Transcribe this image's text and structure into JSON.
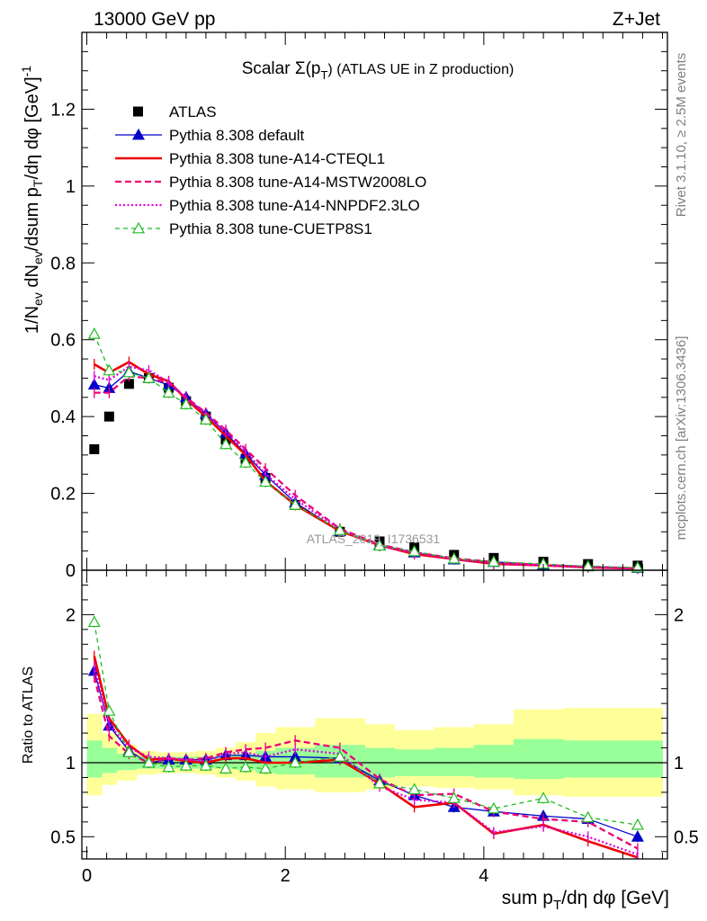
{
  "header": {
    "left": "13000 GeV pp",
    "right": "Z+Jet"
  },
  "side_labels": {
    "rivet": "Rivet 3.1.10, ≥ 2.5M events",
    "mcplots": "mcplots.cern.ch [arXiv:1306.3436]"
  },
  "watermark": "ATLAS_2019_I1736531",
  "colors": {
    "atlas": "#000000",
    "default": "#0000cc",
    "cteql1": "#ee0000",
    "mstw": "#ee0077",
    "nnpdf": "#dd00dd",
    "cuetp8s1": "#22bb22",
    "band_inner": "#99ff99",
    "band_outer": "#ffff99"
  },
  "chart_data": {
    "type": "line",
    "title": "Scalar Σ(p_T) (ATLAS UE in Z production)",
    "title_main": "Scalar Σ(p",
    "title_sub": "T",
    "title_rest": ") (ATLAS UE in Z production)",
    "xlabel": "sum p_T/dη dφ [GeV]",
    "xlabel_a": "sum p",
    "xlabel_sub": "T",
    "xlabel_b": "/dη dφ [GeV]",
    "ylabel": "1/N_ev dN_ev/dsum p_T/dη dφ [GeV]^-1",
    "ylabel_parts": {
      "a": "1/N",
      "sub1": "ev",
      "b": " dN",
      "sub2": "ev",
      "c": "/dsum p",
      "sub3": "T",
      "d": "/dη dφ  [GeV]",
      "sup": "-1"
    },
    "ratio_ylabel": "Ratio to ATLAS",
    "xlim": [
      -0.05,
      5.85
    ],
    "ylim": [
      0,
      1.4
    ],
    "ratio_ylim": [
      0.35,
      2.3
    ],
    "x_ticks": [
      "0",
      "2",
      "4"
    ],
    "y_ticks": [
      "0",
      "0.2",
      "0.4",
      "0.6",
      "0.8",
      "1",
      "1.2"
    ],
    "ratio_ticks": [
      "0.5",
      "1",
      "2"
    ],
    "legend_position": "top-left",
    "x": [
      0.075,
      0.225,
      0.425,
      0.625,
      0.825,
      1.0,
      1.2,
      1.4,
      1.6,
      1.8,
      2.1,
      2.55,
      2.95,
      3.3,
      3.7,
      4.1,
      4.6,
      5.05,
      5.55
    ],
    "atlas": [
      0.315,
      0.4,
      0.485,
      0.5,
      0.475,
      0.44,
      0.4,
      0.34,
      0.29,
      0.24,
      0.17,
      0.1,
      0.075,
      0.06,
      0.04,
      0.032,
      0.022,
      0.016,
      0.012
    ],
    "atlas_band_edges": [
      0.0,
      0.15,
      0.3,
      0.5,
      0.7,
      0.9,
      1.1,
      1.3,
      1.5,
      1.7,
      1.9,
      2.3,
      2.8,
      3.1,
      3.5,
      3.9,
      4.3,
      4.8,
      5.3,
      5.8
    ],
    "band_inner": [
      [
        0.9,
        1.15
      ],
      [
        0.93,
        1.1
      ],
      [
        0.95,
        1.06
      ],
      [
        0.96,
        1.04
      ],
      [
        0.96,
        1.04
      ],
      [
        0.96,
        1.04
      ],
      [
        0.96,
        1.04
      ],
      [
        0.96,
        1.05
      ],
      [
        0.95,
        1.06
      ],
      [
        0.93,
        1.08
      ],
      [
        0.92,
        1.1
      ],
      [
        0.9,
        1.12
      ],
      [
        0.9,
        1.1
      ],
      [
        0.91,
        1.09
      ],
      [
        0.91,
        1.1
      ],
      [
        0.9,
        1.12
      ],
      [
        0.89,
        1.16
      ],
      [
        0.9,
        1.15
      ],
      [
        0.9,
        1.15
      ]
    ],
    "band_outer": [
      [
        0.78,
        1.33
      ],
      [
        0.85,
        1.2
      ],
      [
        0.88,
        1.12
      ],
      [
        0.92,
        1.08
      ],
      [
        0.93,
        1.07
      ],
      [
        0.93,
        1.07
      ],
      [
        0.92,
        1.08
      ],
      [
        0.9,
        1.1
      ],
      [
        0.88,
        1.14
      ],
      [
        0.84,
        1.2
      ],
      [
        0.82,
        1.24
      ],
      [
        0.8,
        1.3
      ],
      [
        0.82,
        1.26
      ],
      [
        0.84,
        1.22
      ],
      [
        0.83,
        1.24
      ],
      [
        0.82,
        1.26
      ],
      [
        0.78,
        1.36
      ],
      [
        0.77,
        1.37
      ],
      [
        0.77,
        1.37
      ]
    ],
    "series": [
      {
        "name": "ATLAS",
        "key": "atlas",
        "style": "square",
        "values": [
          0.315,
          0.4,
          0.485,
          0.5,
          0.475,
          0.44,
          0.4,
          0.34,
          0.29,
          0.24,
          0.17,
          0.1,
          0.075,
          0.06,
          0.04,
          0.032,
          0.022,
          0.016,
          0.012
        ]
      },
      {
        "name": "Pythia 8.308 default",
        "key": "default",
        "style": "solid-triangle",
        "values": [
          0.483,
          0.474,
          0.518,
          0.5,
          0.482,
          0.45,
          0.407,
          0.357,
          0.303,
          0.248,
          0.176,
          0.102,
          0.066,
          0.046,
          0.028,
          0.0215,
          0.014,
          0.01,
          0.006
        ]
      },
      {
        "name": "Pythia 8.308 tune-A14-CTEQL1",
        "key": "cteql1",
        "style": "thick-solid",
        "values": [
          0.536,
          0.514,
          0.542,
          0.51,
          0.492,
          0.445,
          0.4,
          0.35,
          0.3,
          0.232,
          0.17,
          0.102,
          0.065,
          0.042,
          0.029,
          0.0165,
          0.0128,
          0.0075,
          0.0044
        ]
      },
      {
        "name": "Pythia 8.308 tune-A14-MSTW2008LO",
        "key": "mstw",
        "style": "dashed",
        "values": [
          0.462,
          0.462,
          0.505,
          0.5,
          0.488,
          0.45,
          0.41,
          0.365,
          0.315,
          0.265,
          0.195,
          0.108,
          0.067,
          0.047,
          0.031,
          0.0215,
          0.0135,
          0.0095,
          0.005
        ]
      },
      {
        "name": "Pythia 8.308 tune-A14-NNPDF2.3LO",
        "key": "nnpdf",
        "style": "dotted",
        "values": [
          0.505,
          0.495,
          0.53,
          0.52,
          0.49,
          0.447,
          0.405,
          0.36,
          0.31,
          0.25,
          0.185,
          0.106,
          0.063,
          0.045,
          0.029,
          0.017,
          0.0125,
          0.008,
          0.0045
        ]
      },
      {
        "name": "Pythia 8.308 tune-CUETP8S1",
        "key": "cuetp8s1",
        "style": "dashed-open-triangle",
        "values": [
          0.615,
          0.52,
          0.515,
          0.5,
          0.462,
          0.432,
          0.392,
          0.328,
          0.28,
          0.23,
          0.17,
          0.104,
          0.064,
          0.049,
          0.03,
          0.022,
          0.0165,
          0.01,
          0.007
        ]
      }
    ],
    "ratio_series": [
      {
        "key": "default",
        "values": [
          1.62,
          1.25,
          1.08,
          1.0,
          1.02,
          1.02,
          1.02,
          1.05,
          1.05,
          1.04,
          1.04,
          1.03,
          0.88,
          0.78,
          0.7,
          0.67,
          0.64,
          0.62,
          0.5
        ]
      },
      {
        "key": "cteql1",
        "values": [
          1.72,
          1.3,
          1.12,
          1.02,
          1.03,
          1.01,
          1.0,
          1.03,
          1.03,
          1.0,
          1.0,
          1.02,
          0.86,
          0.7,
          0.73,
          0.52,
          0.58,
          0.47,
          0.36
        ]
      },
      {
        "key": "mstw",
        "values": [
          1.58,
          1.18,
          1.06,
          1.0,
          1.03,
          1.02,
          1.03,
          1.07,
          1.09,
          1.1,
          1.15,
          1.1,
          0.89,
          0.78,
          0.79,
          0.67,
          0.62,
          0.6,
          0.42
        ]
      },
      {
        "key": "nnpdf",
        "values": [
          1.65,
          1.26,
          1.1,
          1.04,
          1.03,
          1.02,
          1.01,
          1.06,
          1.07,
          1.04,
          1.09,
          1.06,
          0.84,
          0.75,
          0.73,
          0.53,
          0.57,
          0.5,
          0.38
        ]
      },
      {
        "key": "cuetp8s1",
        "values": [
          1.95,
          1.35,
          1.07,
          1.0,
          0.97,
          0.98,
          0.98,
          0.96,
          0.97,
          0.96,
          1.0,
          1.04,
          0.86,
          0.82,
          0.76,
          0.69,
          0.76,
          0.63,
          0.58
        ]
      }
    ]
  }
}
